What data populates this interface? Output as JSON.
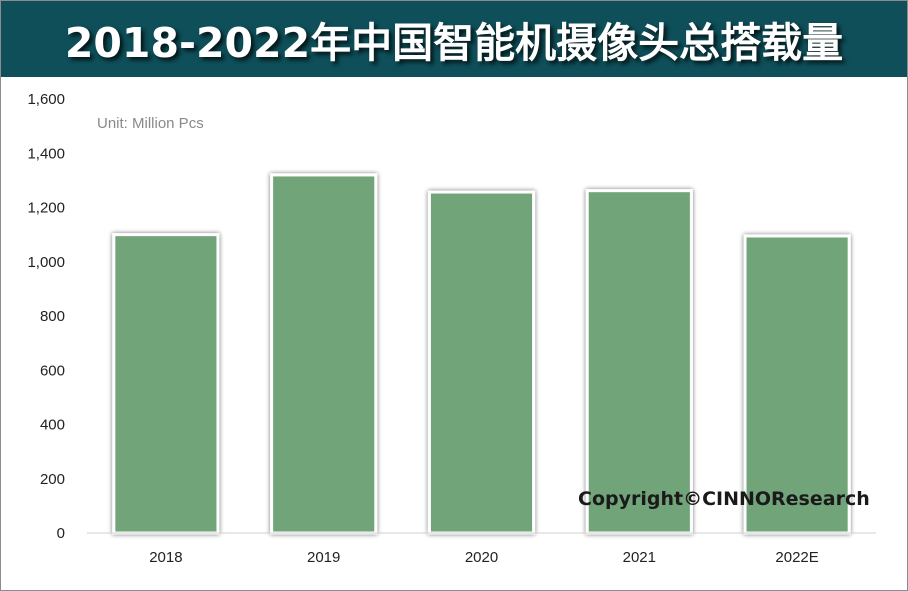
{
  "header": {
    "title": "2018-2022年中国智能机摄像头总搭载量"
  },
  "annotations": {
    "unit": "Unit:  Million Pcs",
    "copyright": "Copyright©CINNOResearch"
  },
  "colors": {
    "header_bg": "#0e4f59",
    "bar_fill": "#72a47a",
    "bar_border": "#ffffff"
  },
  "chart_data": {
    "type": "bar",
    "categories": [
      "2018",
      "2019",
      "2020",
      "2021",
      "2022E"
    ],
    "values": [
      1100,
      1320,
      1257,
      1262,
      1095
    ],
    "ylim": [
      0,
      1600
    ],
    "yticks": [
      0,
      200,
      400,
      600,
      800,
      1000,
      1200,
      1400,
      1600
    ],
    "ytick_labels": [
      "0",
      "200",
      "400",
      "600",
      "800",
      "1,000",
      "1,200",
      "1,400",
      "1,600"
    ],
    "xlabel": "",
    "ylabel": "",
    "grid": false,
    "legend": "none"
  }
}
